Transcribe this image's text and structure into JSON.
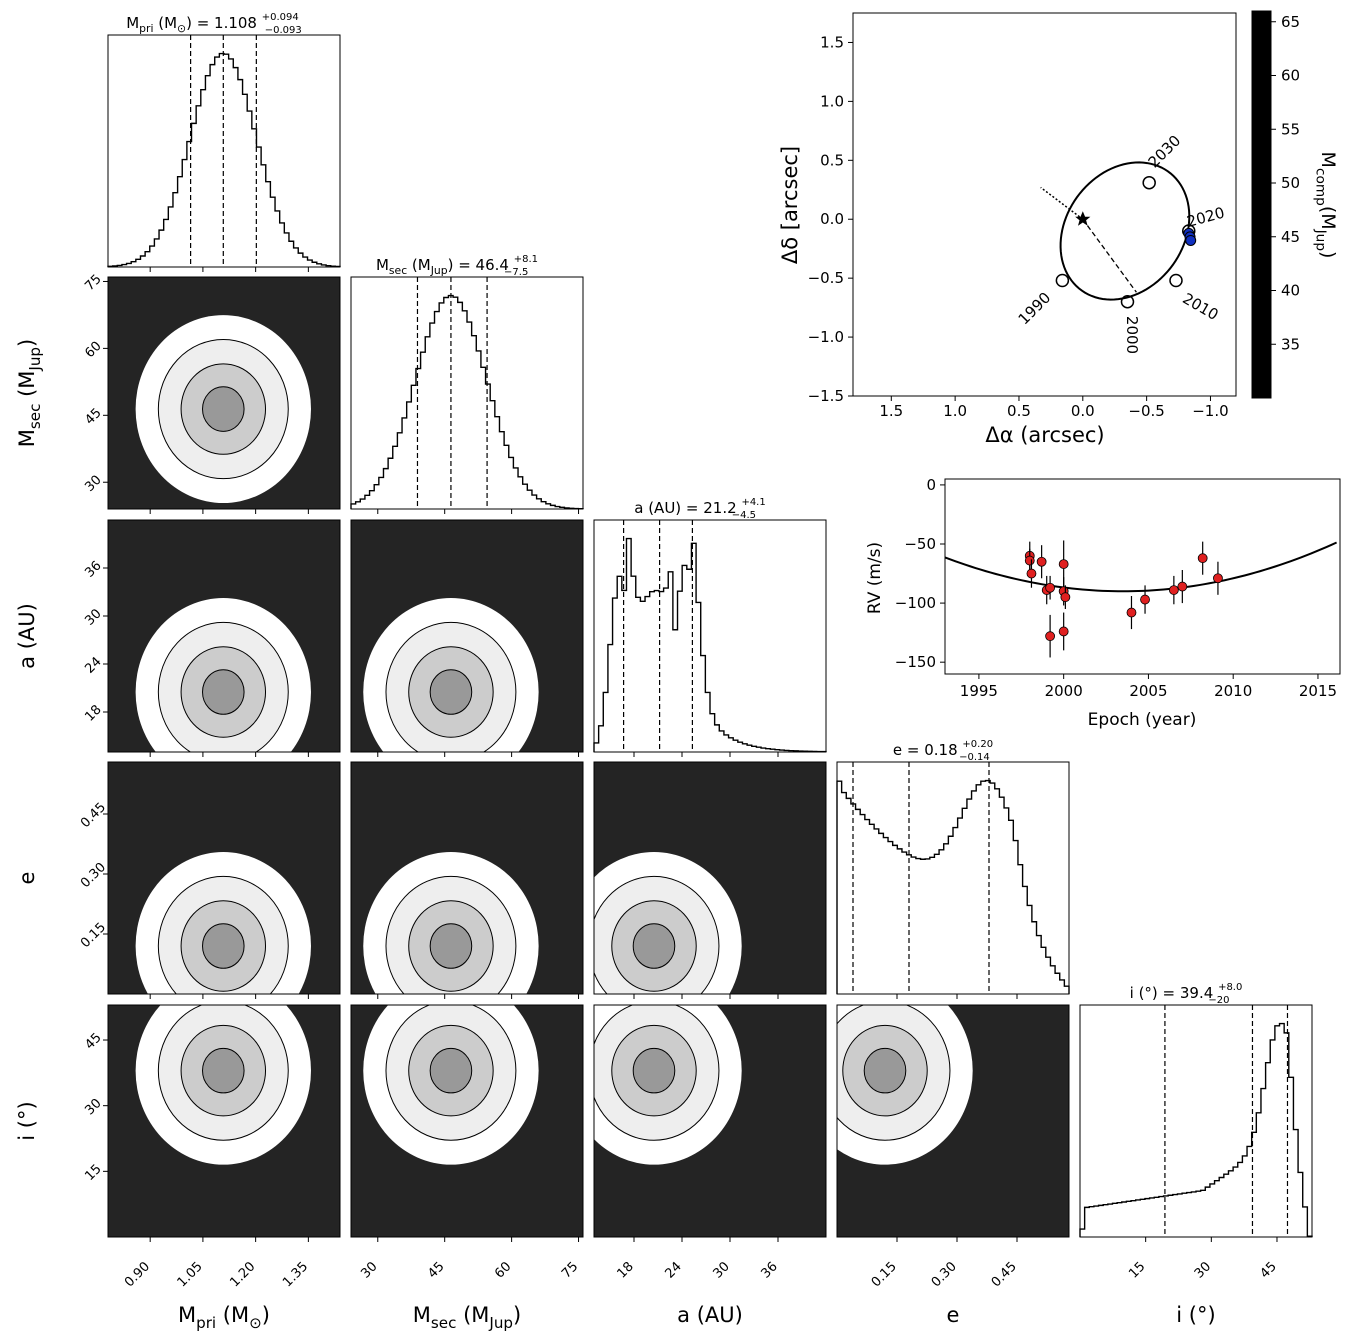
{
  "chart_data": [
    {
      "panel": "corner_plot",
      "type": "histogram",
      "parameters": [
        {
          "key": "mpri",
          "label": "M",
          "sub": "pri",
          "unit": "(M",
          "unit_sub": "⊙",
          "unit_close": ")",
          "title_value": "1.108",
          "plus": "+0.094",
          "minus": "−0.093",
          "range": [
            0.78,
            1.44
          ],
          "ticks": [
            0.9,
            1.05,
            1.2,
            1.35
          ],
          "tick_labels": [
            "0.90",
            "1.05",
            "1.20",
            "1.35"
          ],
          "quantiles": [
            1.015,
            1.108,
            1.202
          ],
          "shape": "normal",
          "mode": 1.108,
          "width": 0.094
        },
        {
          "key": "msec",
          "label": "M",
          "sub": "sec",
          "unit": "(M",
          "unit_sub": "Jup",
          "unit_close": ")",
          "title_value": "46.4",
          "plus": "+8.1",
          "minus": "−7.5",
          "range": [
            24,
            76
          ],
          "ticks": [
            30,
            45,
            60,
            75
          ],
          "tick_labels": [
            "30",
            "45",
            "60",
            "75"
          ],
          "quantiles": [
            38.9,
            46.4,
            54.5
          ],
          "shape": "normal",
          "mode": 46.4,
          "width": 8.0
        },
        {
          "key": "a",
          "label": "a (AU)",
          "title_value": "21.2",
          "plus": "+4.1",
          "minus": "−4.5",
          "range": [
            13,
            42
          ],
          "ticks": [
            18,
            24,
            30,
            36
          ],
          "tick_labels": [
            "18",
            "24",
            "30",
            "36"
          ],
          "quantiles": [
            16.7,
            21.2,
            25.3
          ],
          "shape": "bimodal_a"
        },
        {
          "key": "e",
          "label": "e",
          "title_value": "0.18",
          "plus": "+0.20",
          "minus": "−0.14",
          "range": [
            0.0,
            0.58
          ],
          "ticks": [
            0.15,
            0.3,
            0.45
          ],
          "tick_labels": [
            "0.15",
            "0.30",
            "0.45"
          ],
          "quantiles": [
            0.04,
            0.18,
            0.38
          ],
          "shape": "ecc"
        },
        {
          "key": "inc",
          "label": "i",
          "unit": "(°)",
          "title_value": "39.4",
          "plus": "+8.0",
          "minus": "−20",
          "range": [
            0,
            53
          ],
          "ticks": [
            15,
            30,
            45
          ],
          "tick_labels": [
            "15",
            "30",
            "45"
          ],
          "quantiles": [
            19.4,
            39.4,
            47.4
          ],
          "shape": "inc"
        }
      ]
    },
    {
      "panel": "orbit",
      "type": "line",
      "xlabel": "Δα (arcsec)",
      "ylabel": "Δδ [arcsec]",
      "xlim": [
        1.8,
        -1.2
      ],
      "ylim": [
        -1.5,
        1.75
      ],
      "xticks": [
        1.5,
        1.0,
        0.5,
        0.0,
        -0.5,
        -1.0
      ],
      "xtick_labels": [
        "1.5",
        "1.0",
        "0.5",
        "0.0",
        "−0.5",
        "−1.0"
      ],
      "yticks": [
        1.5,
        1.0,
        0.5,
        0.0,
        -0.5,
        -1.0,
        -1.5
      ],
      "ytick_labels": [
        "1.5",
        "1.0",
        "0.5",
        "0.0",
        "−0.5",
        "−1.0",
        "−1.5"
      ],
      "epoch_labels": [
        "1990",
        "2000",
        "2010",
        "2020",
        "2030"
      ],
      "epoch_points": [
        [
          0.16,
          -0.52
        ],
        [
          -0.35,
          -0.7
        ],
        [
          -0.73,
          -0.52
        ],
        [
          -0.83,
          -0.1
        ],
        [
          -0.52,
          0.31
        ]
      ],
      "observed_points": [
        [
          -0.83,
          -0.12
        ],
        [
          -0.84,
          -0.15
        ],
        [
          -0.845,
          -0.18
        ]
      ],
      "best_orbit": {
        "center": [
          -0.33,
          -0.1
        ],
        "a": 0.47,
        "b": 0.61,
        "angle_deg": 28
      },
      "colorbar": {
        "label": "M",
        "sub": "comp",
        "unit": "(M",
        "unit_sub": "Jup",
        "unit_close": ")",
        "range": [
          30,
          66
        ],
        "ticks": [
          35,
          40,
          45,
          50,
          55,
          60,
          65
        ],
        "tick_labels": [
          "35",
          "40",
          "45",
          "50",
          "55",
          "60",
          "65"
        ]
      }
    },
    {
      "panel": "rv",
      "type": "scatter",
      "xlabel": "Epoch (year)",
      "ylabel": "RV (m/s)",
      "xlim": [
        1993,
        2016.3
      ],
      "ylim": [
        -160,
        5
      ],
      "xticks": [
        1995,
        2000,
        2005,
        2010,
        2015
      ],
      "xtick_labels": [
        "1995",
        "2000",
        "2005",
        "2010",
        "2015"
      ],
      "yticks": [
        0,
        -50,
        -100,
        -150
      ],
      "ytick_labels": [
        "0",
        "−50",
        "−100",
        "−150"
      ],
      "points": [
        {
          "x": 1998.0,
          "y": -60,
          "err": 12
        },
        {
          "x": 1998.0,
          "y": -64,
          "err": 10
        },
        {
          "x": 1998.1,
          "y": -75,
          "err": 12
        },
        {
          "x": 1998.7,
          "y": -65,
          "err": 14
        },
        {
          "x": 1999.0,
          "y": -89,
          "err": 12
        },
        {
          "x": 1999.2,
          "y": -87,
          "err": 10
        },
        {
          "x": 1999.2,
          "y": -128,
          "err": 18
        },
        {
          "x": 2000.0,
          "y": -67,
          "err": 20
        },
        {
          "x": 2000.0,
          "y": -90,
          "err": 12
        },
        {
          "x": 2000.1,
          "y": -95,
          "err": 10
        },
        {
          "x": 2000.0,
          "y": -124,
          "err": 16
        },
        {
          "x": 2004.0,
          "y": -108,
          "err": 14
        },
        {
          "x": 2004.8,
          "y": -97,
          "err": 12
        },
        {
          "x": 2006.5,
          "y": -89,
          "err": 12
        },
        {
          "x": 2007.0,
          "y": -86,
          "err": 14
        },
        {
          "x": 2008.2,
          "y": -62,
          "err": 14
        },
        {
          "x": 2009.1,
          "y": -79,
          "err": 14
        }
      ],
      "best_fit_model": {
        "vertex_x": 2003.5,
        "vertex_y": -90,
        "curvature": 0.26
      }
    }
  ]
}
